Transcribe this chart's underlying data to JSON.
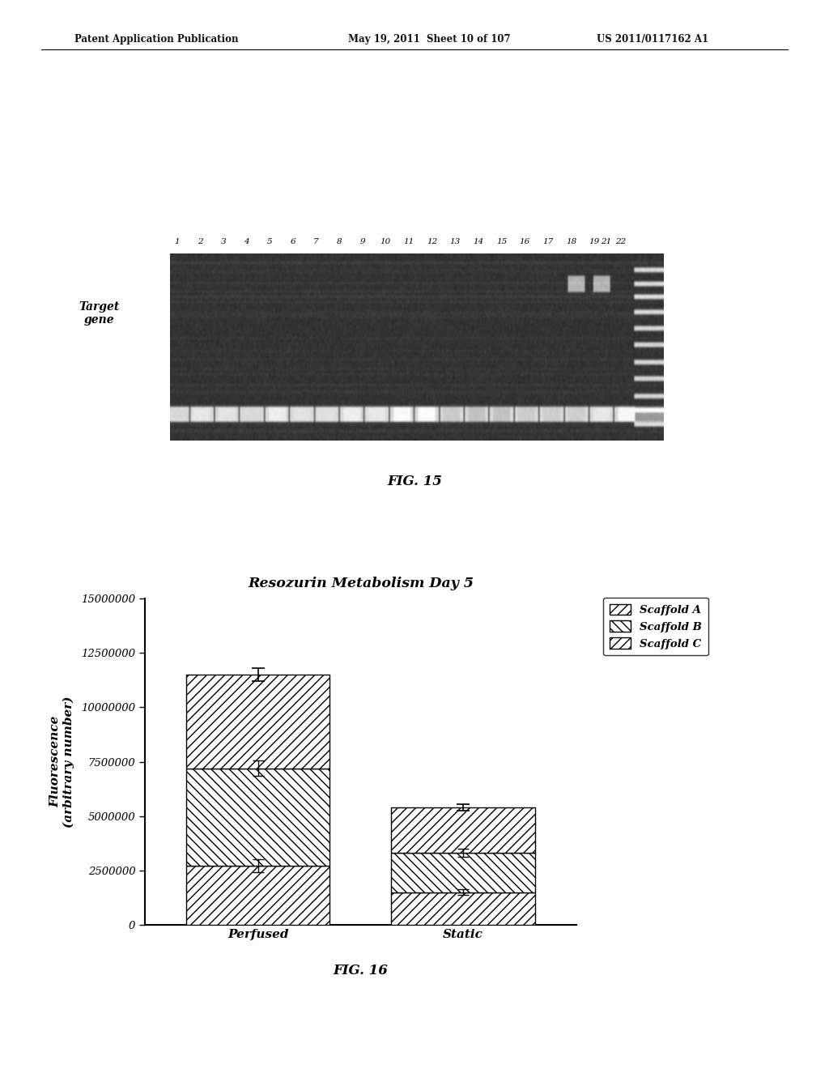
{
  "header_left": "Patent Application Publication",
  "header_mid": "May 19, 2011  Sheet 10 of 107",
  "header_right": "US 2011/0117162 A1",
  "fig15_label": "FIG. 15",
  "fig16_label": "FIG. 16",
  "target_gene_label": "Target\ngene",
  "lane_labels": [
    "1",
    "2",
    "3",
    "4",
    "5",
    "6",
    "7",
    "8",
    "9",
    "10",
    "11",
    "12",
    "13",
    "14",
    "15",
    "16",
    "17",
    "18",
    "19",
    "21",
    "22"
  ],
  "chart_title": "Resozurin Metabolism Day 5",
  "categories": [
    "Perfused",
    "Static"
  ],
  "scaffold_a_values": [
    2700000,
    1500000
  ],
  "scaffold_b_values": [
    4500000,
    1800000
  ],
  "scaffold_c_values": [
    4300000,
    2100000
  ],
  "scaffold_a_errors": [
    350000,
    100000
  ],
  "scaffold_b_errors": [
    450000,
    150000
  ],
  "scaffold_c_errors": [
    300000,
    120000
  ],
  "total_errors": [
    300000,
    150000
  ],
  "ylabel": "Fluorescence\n(arbitrary number)",
  "ylim": [
    0,
    15000000
  ],
  "yticks": [
    0,
    2500000,
    5000000,
    7500000,
    10000000,
    12500000,
    15000000
  ],
  "legend_labels": [
    "Scaffold A",
    "Scaffold B",
    "Scaffold C"
  ],
  "background_color": "#ffffff",
  "gel_dark_color": 0.2,
  "gel_noise_scale": 0.03
}
